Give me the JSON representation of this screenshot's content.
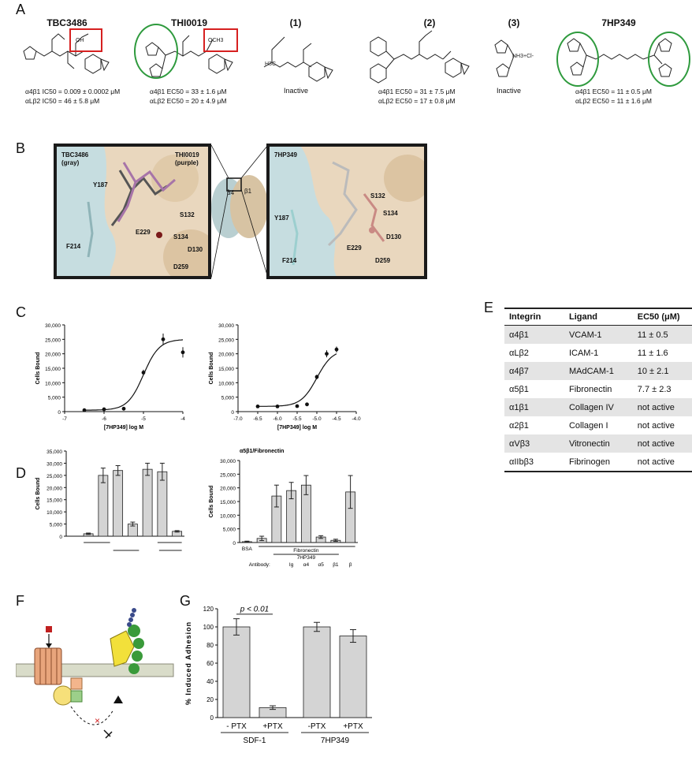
{
  "panels": {
    "a": "A",
    "b": "B",
    "c": "C",
    "d": "D",
    "e": "E",
    "f": "F",
    "g": "G"
  },
  "compounds": [
    {
      "name": "TBC3486",
      "act": [
        "α4β1 IC50 = 0.009 ± 0.0002 μM",
        "αLβ2 IC50 = 46 ± 5.8 μM"
      ]
    },
    {
      "name": "THI0019",
      "act": [
        "α4β1 EC50 = 33 ± 1.6 μM",
        "αLβ2 EC50 = 20 ± 4.9 μM"
      ]
    },
    {
      "name": "(1)",
      "inactive": "Inactive"
    },
    {
      "name": "(2)",
      "act": [
        "α4β1 EC50 = 31 ± 7.5 μM",
        "αLβ2 EC50 = 17 ± 0.8 μM"
      ]
    },
    {
      "name": "(3)",
      "inactive": "Inactive"
    },
    {
      "name": "7HP349",
      "act": [
        "α4β1 EC50 = 11 ± 0.5 μM",
        "αLβ2 EC50 = 11 ± 1.6 μM"
      ]
    }
  ],
  "structure_labels": {
    "oh": "OH",
    "och3": "OCH3",
    "h3c": "H3C",
    "nh": "NH3+Cl-"
  },
  "dock": {
    "left_title1": "TBC3486",
    "left_sub1": "(gray)",
    "left_title2": "THI0019",
    "left_sub2": "(purple)",
    "right_title": "7HP349",
    "left_res": [
      "Y187",
      "F214",
      "S132",
      "E229",
      "S134",
      "D130",
      "D259"
    ],
    "right_res": [
      "S132",
      "S134",
      "Y187",
      "D130",
      "E229",
      "F214",
      "D259"
    ],
    "alpha": "α4",
    "beta": "β1"
  },
  "chart_data": [
    {
      "type": "scatter",
      "panel": "C-left",
      "xlabel": "[7HP349] log M",
      "ylabel": "Cells Bound",
      "xlim": [
        -7,
        -4
      ],
      "ylim": [
        0,
        30000
      ],
      "xticks": [
        "-7",
        "-6",
        "-5",
        "-4"
      ],
      "yticks": [
        "0",
        "5,000",
        "10,000",
        "15,000",
        "20,000",
        "25,000",
        "30,000"
      ],
      "x": [
        -6.5,
        -6.0,
        -5.5,
        -5.0,
        -4.5,
        -4.0
      ],
      "y": [
        500,
        800,
        1000,
        13500,
        25000,
        20500
      ],
      "err": [
        300,
        300,
        300,
        1000,
        2000,
        1800
      ]
    },
    {
      "type": "scatter",
      "panel": "C-right",
      "xlabel": "[7HP349] log M",
      "ylabel": "Cells Bound",
      "xlim": [
        -7,
        -4
      ],
      "ylim": [
        0,
        30000
      ],
      "xticks": [
        "-7.0",
        "-6.5",
        "-6.0",
        "-5.5",
        "-5.0",
        "-4.5",
        "-4.0"
      ],
      "yticks": [
        "0",
        "5,000",
        "10,000",
        "15,000",
        "20,000",
        "25,000",
        "30,000"
      ],
      "x": [
        -6.5,
        -6.0,
        -5.5,
        -5.25,
        -5.0,
        -4.75,
        -4.5
      ],
      "y": [
        1800,
        1800,
        1900,
        2500,
        12000,
        20000,
        21500
      ],
      "err": [
        200,
        200,
        200,
        300,
        800,
        1200,
        1000
      ]
    },
    {
      "type": "bar",
      "panel": "D-left",
      "ylabel": "Cells Bound",
      "ylim": [
        0,
        35000
      ],
      "yticks": [
        "0",
        "5,000",
        "10,000",
        "15,000",
        "20,000",
        "25,000",
        "30,000",
        "35,000"
      ],
      "values": [
        0,
        1000,
        25000,
        27000,
        5000,
        27500,
        26500,
        2000
      ],
      "err": [
        0,
        300,
        3000,
        2000,
        800,
        2500,
        3500,
        300
      ]
    },
    {
      "type": "bar",
      "panel": "D-right",
      "title": "α5β1/Fibronectin",
      "ylabel": "Cells Bound",
      "ylim": [
        0,
        30000
      ],
      "yticks": [
        "0",
        "5,000",
        "10,000",
        "15,000",
        "20,000",
        "25,000",
        "30,000"
      ],
      "values": [
        300,
        1500,
        17000,
        19000,
        21000,
        2000,
        800,
        18500
      ],
      "err": [
        200,
        800,
        4000,
        3000,
        3500,
        500,
        400,
        6000
      ],
      "labels": {
        "bsa": "BSA",
        "fn": "Fibronectin",
        "drug": "7HP349",
        "antibody": "Antibody:",
        "ab": [
          "Ig",
          "α4",
          "α5",
          "β1",
          "β"
        ]
      }
    },
    {
      "type": "bar",
      "panel": "G",
      "ylabel": "% Induced Adhesion",
      "ylim": [
        0,
        120
      ],
      "yticks": [
        "0",
        "20",
        "40",
        "60",
        "80",
        "100",
        "120"
      ],
      "categories": [
        "- PTX",
        "+PTX",
        "-PTX",
        "+PTX"
      ],
      "groups": [
        "SDF-1",
        "7HP349"
      ],
      "values": [
        100,
        11,
        100,
        90
      ],
      "err": [
        9,
        2,
        5,
        7
      ],
      "annotation": "p < 0.01"
    }
  ],
  "table": {
    "headers": [
      "Integrin",
      "Ligand",
      "EC50 (μM)"
    ],
    "rows": [
      [
        "α4β1",
        "VCAM-1",
        "11 ± 0.5"
      ],
      [
        "αLβ2",
        "ICAM-1",
        "11 ± 1.6"
      ],
      [
        "α4β7",
        "MAdCAM-1",
        "10 ± 2.1"
      ],
      [
        "α5β1",
        "Fibronectin",
        "7.7 ± 2.3"
      ],
      [
        "α1β1",
        "Collagen IV",
        "not active"
      ],
      [
        "α2β1",
        "Collagen I",
        "not active"
      ],
      [
        "αVβ3",
        "Vitronectin",
        "not active"
      ],
      [
        "αIIbβ3",
        "Fibrinogen",
        "not active"
      ]
    ]
  }
}
